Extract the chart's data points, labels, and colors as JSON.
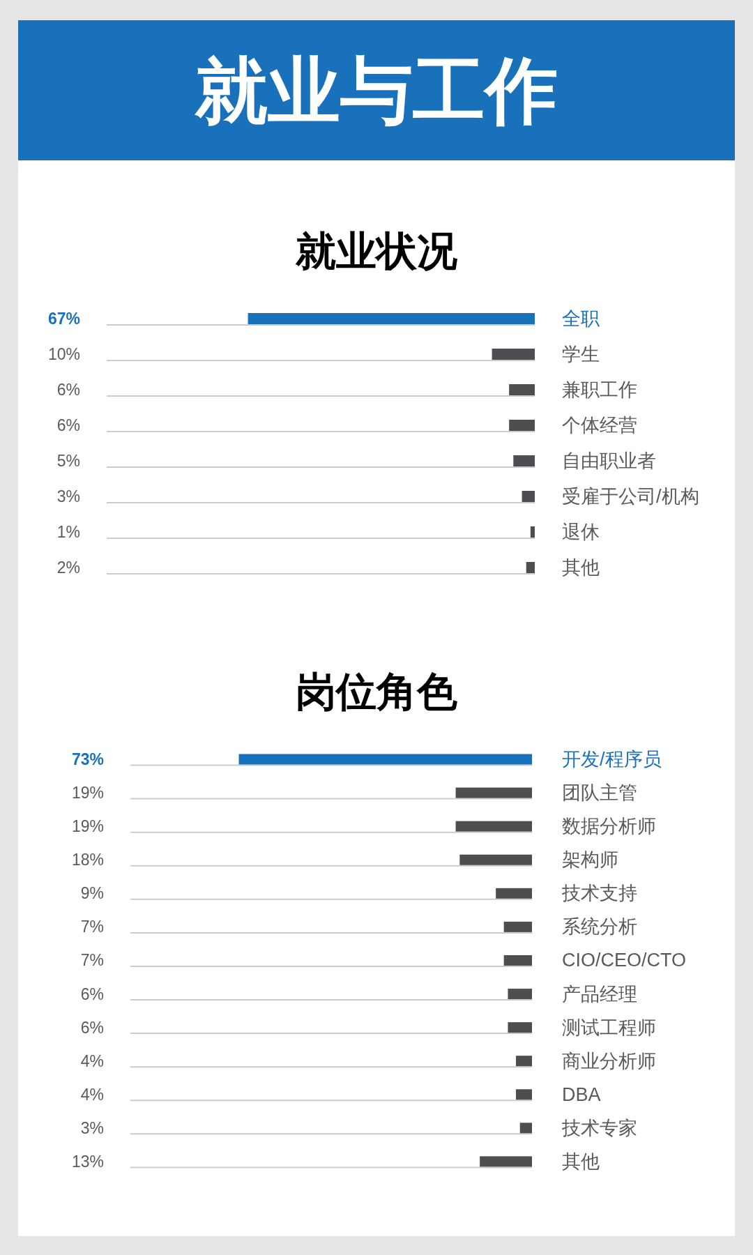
{
  "chart_data": [
    {
      "type": "other",
      "title": "就业与工作"
    },
    {
      "type": "bar",
      "orientation": "horizontal",
      "title": "就业状况",
      "categories": [
        "全职",
        "学生",
        "兼职工作",
        "个体经营",
        "自由职业者",
        "受雇于公司/机构",
        "退休",
        "其他"
      ],
      "values": [
        67,
        10,
        6,
        6,
        5,
        3,
        1,
        2
      ],
      "value_labels": [
        "67%",
        "10%",
        "6%",
        "6%",
        "5%",
        "3%",
        "1%",
        "2%"
      ],
      "colors": [
        "#1a71bb",
        "#4d4e52",
        "#4d4e52",
        "#4d4e52",
        "#4d4e52",
        "#4d4e52",
        "#4d4e52",
        "#4d4e52"
      ],
      "xlim": [
        100,
        0
      ]
    },
    {
      "type": "bar",
      "orientation": "horizontal",
      "title": "岗位角色",
      "categories": [
        "开发/程序员",
        "团队主管",
        "数据分析师",
        "架构师",
        "技术支持",
        "系统分析",
        "CIO/CEO/CTO",
        "产品经理",
        "测试工程师",
        "商业分析师",
        "DBA",
        "技术专家",
        "其他"
      ],
      "values": [
        73,
        19,
        19,
        18,
        9,
        7,
        7,
        6,
        6,
        4,
        4,
        3,
        13
      ],
      "value_labels": [
        "73%",
        "19%",
        "19%",
        "18%",
        "9%",
        "7%",
        "7%",
        "6%",
        "6%",
        "4%",
        "4%",
        "3%",
        "13%"
      ],
      "colors": [
        "#1a71bb",
        "#4d4e52",
        "#4d4e52",
        "#4d4e52",
        "#4d4e52",
        "#4d4e52",
        "#4d4e52",
        "#4d4e52",
        "#4d4e52",
        "#4d4e52",
        "#4d4e52",
        "#4d4e52",
        "#4d4e52"
      ],
      "xlim": [
        100,
        0
      ]
    }
  ]
}
